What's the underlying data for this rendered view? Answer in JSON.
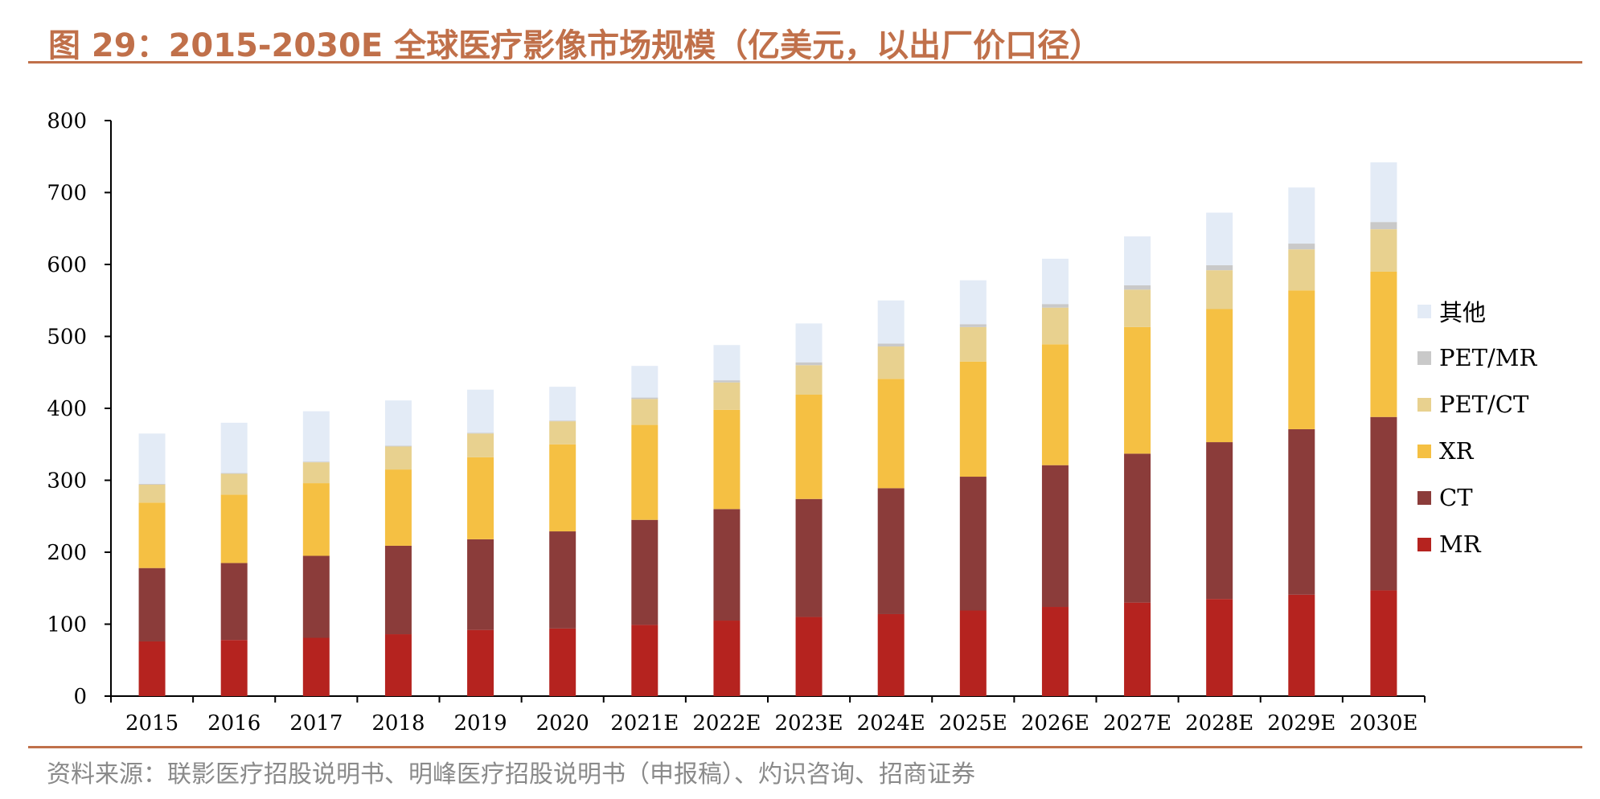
{
  "title": "图 29：2015-2030E 全球医疗影像市场规模（亿美元，以出厂价口径）",
  "source": "资料来源：联影医疗招股说明书、明峰医疗招股说明书（申报稿）、灼识咨询、招商证券",
  "chart_data": {
    "type": "bar",
    "stacked": true,
    "categories": [
      "2015",
      "2016",
      "2017",
      "2018",
      "2019",
      "2020",
      "2021E",
      "2022E",
      "2023E",
      "2024E",
      "2025E",
      "2026E",
      "2027E",
      "2028E",
      "2029E",
      "2030E"
    ],
    "ylim": [
      0,
      800
    ],
    "yticks": [
      0,
      100,
      200,
      300,
      400,
      500,
      600,
      700,
      800
    ],
    "grid": false,
    "legend_position": "right",
    "series": [
      {
        "name": "MR",
        "color": "#b5231f",
        "values": [
          76,
          78,
          81,
          86,
          92,
          94,
          99,
          105,
          110,
          114,
          119,
          124,
          130,
          135,
          141,
          147
        ]
      },
      {
        "name": "CT",
        "color": "#8b3c3a",
        "values": [
          102,
          107,
          114,
          123,
          126,
          135,
          146,
          155,
          164,
          175,
          186,
          197,
          207,
          218,
          230,
          241
        ]
      },
      {
        "name": "XR",
        "color": "#f5c043",
        "values": [
          91,
          95,
          101,
          106,
          114,
          121,
          132,
          138,
          145,
          152,
          160,
          168,
          176,
          185,
          193,
          202
        ]
      },
      {
        "name": "PET/CT",
        "color": "#e8d18f",
        "values": [
          25,
          29,
          29,
          32,
          33,
          32,
          36,
          38,
          41,
          45,
          48,
          51,
          52,
          54,
          57,
          59
        ]
      },
      {
        "name": "PET/MR",
        "color": "#c9c9c9",
        "values": [
          1,
          1,
          1,
          1,
          1,
          1,
          2,
          3,
          4,
          4,
          4,
          5,
          6,
          7,
          8,
          10
        ]
      },
      {
        "name": "其他",
        "color": "#e3ebf6",
        "values": [
          70,
          70,
          70,
          63,
          60,
          47,
          44,
          49,
          54,
          60,
          61,
          63,
          68,
          73,
          78,
          83
        ]
      }
    ]
  }
}
